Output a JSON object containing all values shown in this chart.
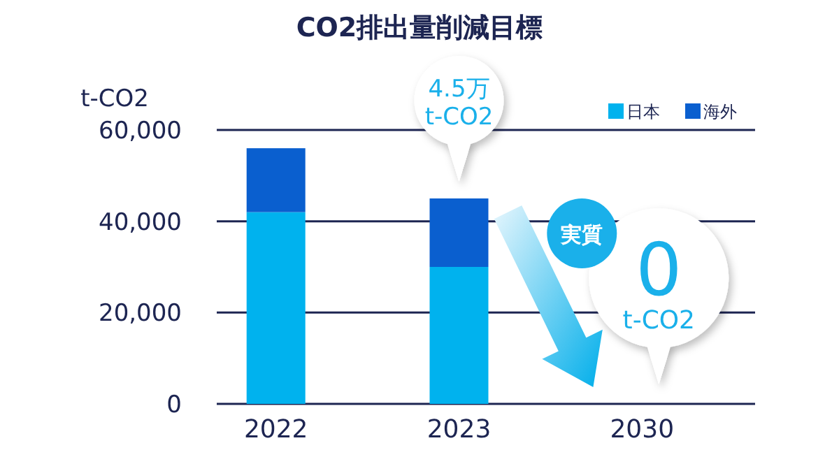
{
  "chart_data": {
    "type": "bar",
    "title": "CO2排出量削減目標",
    "ylabel": "t-CO2",
    "categories": [
      "2022",
      "2023",
      "2030"
    ],
    "series": [
      {
        "name": "日本",
        "color": "#00b2ee",
        "values": [
          42000,
          30000,
          0
        ]
      },
      {
        "name": "海外",
        "color": "#0a5fcf",
        "values": [
          14000,
          15000,
          0
        ]
      }
    ],
    "stacked": true,
    "ylim": [
      0,
      60000
    ],
    "yticks": [
      {
        "value": 0,
        "label": "0"
      },
      {
        "value": 20000,
        "label": "20,000"
      },
      {
        "value": 40000,
        "label": "40,000"
      },
      {
        "value": 60000,
        "label": "60,000"
      }
    ],
    "grid": "y",
    "legend": "top right",
    "annotations": [
      {
        "text": "4.5万 t-CO2",
        "x": "2023",
        "y": 45000
      },
      "実質",
      {
        "text": "0 t-CO2",
        "x": "2030",
        "y": 0
      }
    ]
  }
}
